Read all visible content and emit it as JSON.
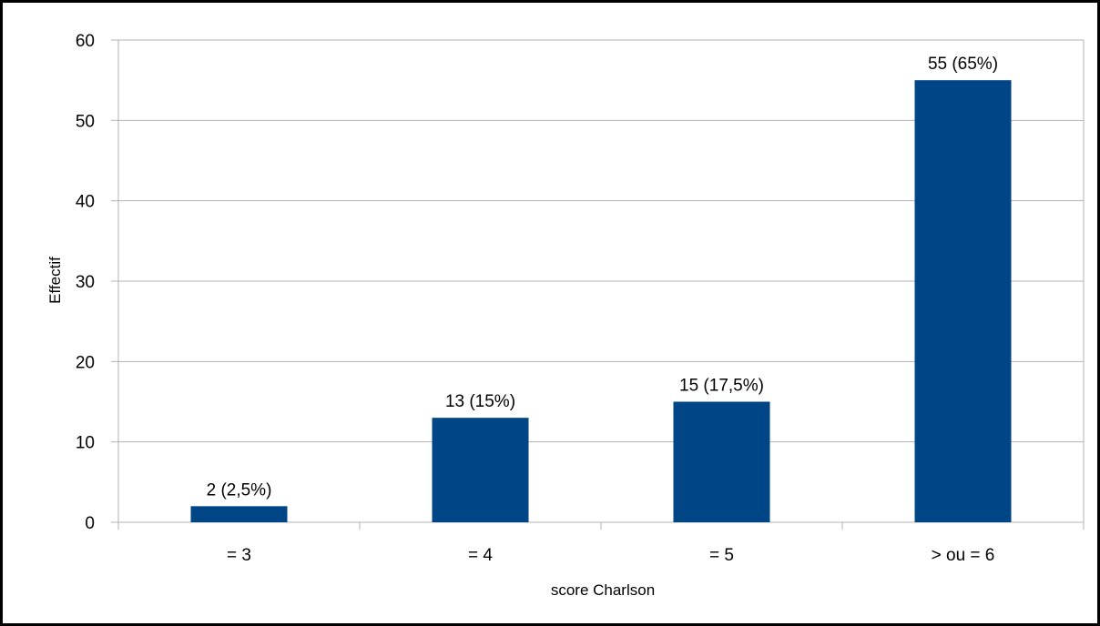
{
  "chart_data": {
    "type": "bar",
    "title": "",
    "xlabel": "score Charlson",
    "ylabel": "Effectif",
    "categories": [
      "= 3",
      "= 4",
      "= 5",
      "> ou = 6"
    ],
    "values": [
      2,
      13,
      15,
      55
    ],
    "data_labels": [
      "2 (2,5%)",
      "13 (15%)",
      "15 (17,5%)",
      "55 (65%)"
    ],
    "ylim": [
      0,
      60
    ],
    "yticks": [
      0,
      10,
      20,
      30,
      40,
      50,
      60
    ],
    "grid": true,
    "legend": "none",
    "colors": {
      "bar": "#004586",
      "grid": "#b3b3b3",
      "axis": "#b3b3b3",
      "border": "#000000"
    }
  }
}
